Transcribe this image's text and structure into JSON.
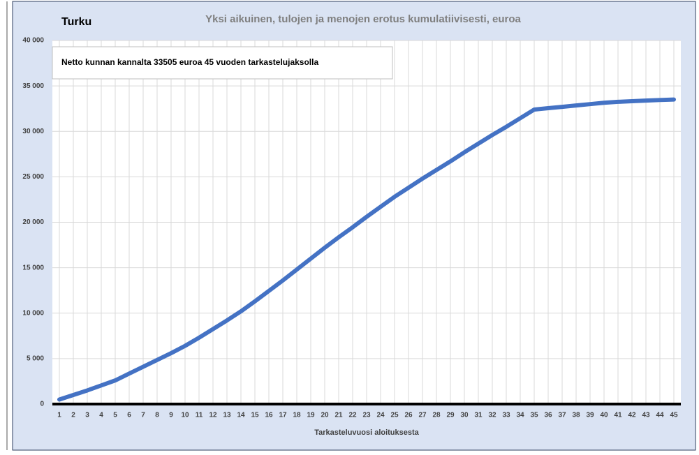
{
  "chart_data": {
    "type": "line",
    "location": "Turku",
    "title": "Yksi aikuinen, tulojen ja menojen erotus kumulatiivisesti, euroa",
    "annotation": "Netto kunnan kannalta 33505 euroa 45 vuoden tarkastelujaksolla",
    "x_label": "Tarkasteluvuosi aloituksesta",
    "categories": [
      "1",
      "2",
      "3",
      "4",
      "5",
      "6",
      "7",
      "8",
      "9",
      "10",
      "11",
      "12",
      "13",
      "14",
      "15",
      "16",
      "17",
      "18",
      "19",
      "20",
      "21",
      "22",
      "23",
      "24",
      "25",
      "26",
      "27",
      "28",
      "29",
      "30",
      "31",
      "32",
      "33",
      "34",
      "35",
      "36",
      "37",
      "38",
      "39",
      "40",
      "41",
      "42",
      "43",
      "44",
      "45"
    ],
    "series": [
      {
        "color": "#4472c4",
        "values": [
          500,
          1000,
          1500,
          2050,
          2600,
          3350,
          4100,
          4850,
          5600,
          6400,
          7300,
          8250,
          9200,
          10200,
          11300,
          12450,
          13600,
          14800,
          16000,
          17200,
          18350,
          19450,
          20600,
          21700,
          22800,
          23800,
          24800,
          25750,
          26700,
          27700,
          28650,
          29600,
          30500,
          31450,
          32400,
          32550,
          32700,
          32850,
          33000,
          33150,
          33250,
          33320,
          33390,
          33450,
          33505
        ]
      }
    ],
    "ylim": [
      0,
      40000
    ],
    "yticks": [
      0,
      {
        "value": 5000,
        "label": "5 000"
      },
      {
        "value": 10000,
        "label": "10 000"
      },
      {
        "value": 15000,
        "label": "15 000"
      },
      {
        "value": 20000,
        "label": "20 000"
      },
      {
        "value": 25000,
        "label": "25 000"
      },
      {
        "value": 30000,
        "label": "30 000"
      },
      {
        "value": 35000,
        "label": "35 000"
      },
      {
        "value": 40000,
        "label": "40 000"
      }
    ],
    "grid": true
  }
}
